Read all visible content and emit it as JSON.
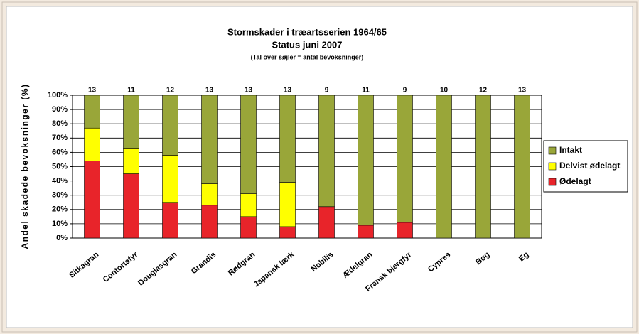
{
  "chart_data": {
    "type": "stacked_bar",
    "title": "Stormskader i træartsserien 1964/65",
    "subtitle": "Status juni 2007",
    "note": "(Tal over søjler = antal bevoksninger)",
    "y_label": "Andel skadede bevoksninger (%)",
    "categories": [
      "Sitkagran",
      "Contortafyr",
      "Douglasgran",
      "Grandis",
      "Rødgran",
      "Japansk lærk",
      "Nobilis",
      "Ædelgran",
      "Fransk bjergfyr",
      "Cypres",
      "Bøg",
      "Eg"
    ],
    "counts": [
      13,
      11,
      12,
      13,
      13,
      13,
      9,
      11,
      9,
      10,
      12,
      13
    ],
    "series": [
      {
        "name": "Ødelagt",
        "color": "#e8242a",
        "values": [
          54,
          45,
          25,
          23,
          15,
          8,
          22,
          9,
          11,
          0,
          0,
          0
        ]
      },
      {
        "name": "Delvist ødelagt",
        "color": "#ffff00",
        "values": [
          23,
          18,
          33,
          15,
          16,
          31,
          0,
          0,
          0,
          0,
          0,
          0
        ]
      },
      {
        "name": "Intakt",
        "color": "#99a639",
        "values": [
          23,
          37,
          42,
          62,
          69,
          61,
          78,
          91,
          89,
          100,
          100,
          100
        ]
      }
    ],
    "ylim": [
      0,
      100
    ],
    "yticks": [
      {
        "value": 0,
        "label": "0%"
      },
      {
        "value": 10,
        "label": "10%"
      },
      {
        "value": 20,
        "label": "20%"
      },
      {
        "value": 30,
        "label": "30%"
      },
      {
        "value": 40,
        "label": "40%"
      },
      {
        "value": 50,
        "label": "50%"
      },
      {
        "value": 60,
        "label": "60%"
      },
      {
        "value": 70,
        "label": "70%"
      },
      {
        "value": 80,
        "label": "80%"
      },
      {
        "value": 90,
        "label": "90%"
      },
      {
        "value": 100,
        "label": "100%"
      }
    ],
    "grid": true
  }
}
